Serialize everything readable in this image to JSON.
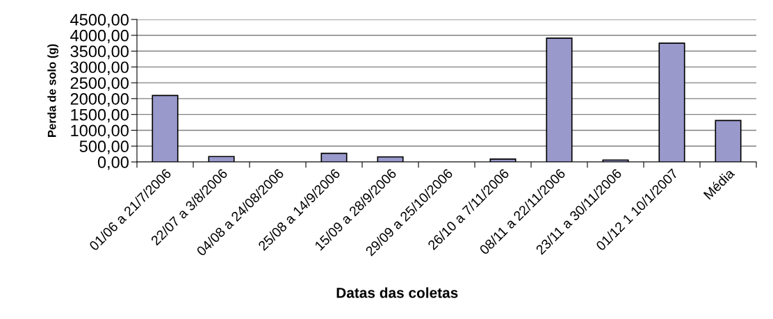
{
  "chart_data": {
    "type": "bar",
    "xlabel": "Datas das coletas",
    "ylabel": "Perda de solo (g)",
    "categories": [
      "01/06 a 21/7/2006",
      "22/07 a 3/8/2006",
      "04/08 a 24/08/2006",
      "25/08 a 14/9/2006",
      "15/09 a 28/9/2006",
      "29/09 a 25/10/2006",
      "26/10 a 7/11/2006",
      "08/11 a 22/11/2006",
      "23/11 a 30/11/2006",
      "01/12 1 10/1/2007",
      "Média"
    ],
    "values": [
      2100,
      170,
      0,
      270,
      160,
      0,
      90,
      3910,
      60,
      3750,
      1310
    ],
    "color": "#9999cc",
    "ylim": [
      0,
      4500
    ],
    "yticks": [
      {
        "value": 0,
        "label": "0,00"
      },
      {
        "value": 500,
        "label": "500,00"
      },
      {
        "value": 1000,
        "label": "1000,00"
      },
      {
        "value": 1500,
        "label": "1500,00"
      },
      {
        "value": 2000,
        "label": "2000,00"
      },
      {
        "value": 2500,
        "label": "2500,00"
      },
      {
        "value": 3000,
        "label": "3000,00"
      },
      {
        "value": 3500,
        "label": "3500,00"
      },
      {
        "value": 4000,
        "label": "4000,00"
      },
      {
        "value": 4500,
        "label": "4500,00"
      }
    ],
    "grid": "y",
    "legend": false
  }
}
